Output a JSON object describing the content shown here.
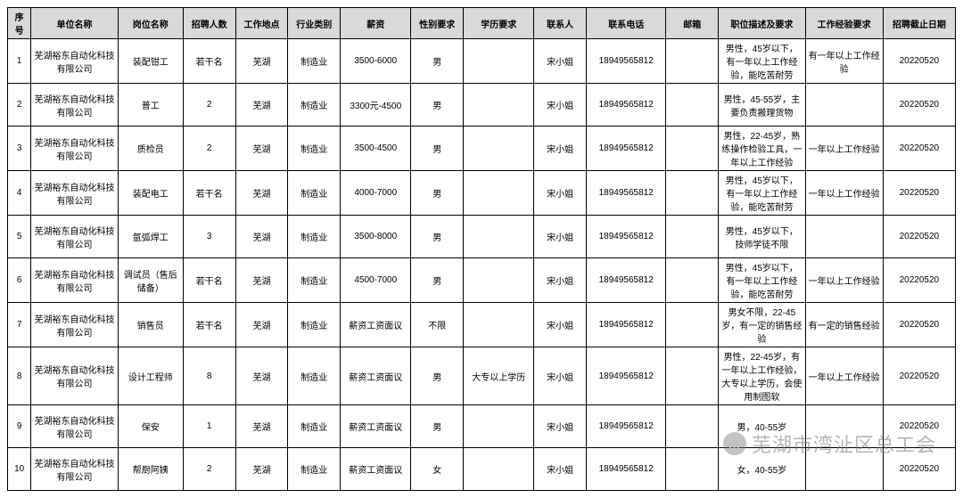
{
  "table": {
    "columns": [
      {
        "key": "idx",
        "label": "序号",
        "class": "col-idx"
      },
      {
        "key": "unit",
        "label": "单位名称",
        "class": "col-unit"
      },
      {
        "key": "position",
        "label": "岗位名称",
        "class": "col-pos"
      },
      {
        "key": "count",
        "label": "招聘人数",
        "class": "col-num"
      },
      {
        "key": "location",
        "label": "工作地点",
        "class": "col-loc"
      },
      {
        "key": "industry",
        "label": "行业类别",
        "class": "col-ind"
      },
      {
        "key": "salary",
        "label": "薪资",
        "class": "col-sal"
      },
      {
        "key": "gender",
        "label": "性别要求",
        "class": "col-gen"
      },
      {
        "key": "education",
        "label": "学历要求",
        "class": "col-edu"
      },
      {
        "key": "contact",
        "label": "联系人",
        "class": "col-contact"
      },
      {
        "key": "phone",
        "label": "联系电话",
        "class": "col-phone"
      },
      {
        "key": "email",
        "label": "邮箱",
        "class": "col-mail"
      },
      {
        "key": "jobdesc",
        "label": "职位描述及要求",
        "class": "col-desc"
      },
      {
        "key": "exp",
        "label": "工作经验要求",
        "class": "col-exp"
      },
      {
        "key": "deadline",
        "label": "招聘截止日期",
        "class": "col-dead"
      }
    ],
    "rows": [
      {
        "idx": "1",
        "unit": "芜湖裕东自动化科技有限公司",
        "position": "装配钳工",
        "count": "若干名",
        "location": "芜湖",
        "industry": "制造业",
        "salary": "3500-6000",
        "gender": "男",
        "education": "",
        "contact": "宋小姐",
        "phone": "18949565812",
        "email": "",
        "jobdesc": "男性，45岁以下，有一年以上工作经验，能吃苦耐劳",
        "exp": "有一年以上工作经验",
        "deadline": "20220520"
      },
      {
        "idx": "2",
        "unit": "芜湖裕东自动化科技有限公司",
        "position": "普工",
        "count": "2",
        "location": "芜湖",
        "industry": "制造业",
        "salary": "3300元-4500",
        "gender": "男",
        "education": "",
        "contact": "宋小姐",
        "phone": "18949565812",
        "email": "",
        "jobdesc": "男性，45-55岁，主要负责搬理货物",
        "exp": "",
        "deadline": "20220520"
      },
      {
        "idx": "3",
        "unit": "芜湖裕东自动化科技有限公司",
        "position": "质检员",
        "count": "2",
        "location": "芜湖",
        "industry": "制造业",
        "salary": "3500-4500",
        "gender": "男",
        "education": "",
        "contact": "宋小姐",
        "phone": "18949565812",
        "email": "",
        "jobdesc": "男性，22-45岁，熟练操作检验工具，一年以上工作经验",
        "exp": "一年以上工作经验",
        "deadline": "20220520"
      },
      {
        "idx": "4",
        "unit": "芜湖裕东自动化科技有限公司",
        "position": "装配电工",
        "count": "若干名",
        "location": "芜湖",
        "industry": "制造业",
        "salary": "4000-7000",
        "gender": "男",
        "education": "",
        "contact": "宋小姐",
        "phone": "18949565812",
        "email": "",
        "jobdesc": "男性，45岁以下，有一年以上工作经验，能吃苦耐劳",
        "exp": "一年以上工作经验",
        "deadline": "20220520"
      },
      {
        "idx": "5",
        "unit": "芜湖裕东自动化科技有限公司",
        "position": "氩弧焊工",
        "count": "3",
        "location": "芜湖",
        "industry": "制造业",
        "salary": "3500-8000",
        "gender": "男",
        "education": "",
        "contact": "宋小姐",
        "phone": "18949565812",
        "email": "",
        "jobdesc": "男性，45岁以下，技师学徒不限",
        "exp": "",
        "deadline": "20220520"
      },
      {
        "idx": "6",
        "unit": "芜湖裕东自动化科技有限公司",
        "position": "调试员（售后储备）",
        "count": "若干名",
        "location": "芜湖",
        "industry": "制造业",
        "salary": "4500-7000",
        "gender": "男",
        "education": "",
        "contact": "宋小姐",
        "phone": "18949565812",
        "email": "",
        "jobdesc": "男性，45岁以下，有一年以上工作经验，能吃苦耐劳",
        "exp": "一年以上工作经验",
        "deadline": "20220520"
      },
      {
        "idx": "7",
        "unit": "芜湖裕东自动化科技有限公司",
        "position": "销售员",
        "count": "若干名",
        "location": "芜湖",
        "industry": "制造业",
        "salary": "薪资工资面议",
        "gender": "不限",
        "education": "",
        "contact": "宋小姐",
        "phone": "18949565812",
        "email": "",
        "jobdesc": "男女不限，22-45岁，有一定的销售经验",
        "exp": "有一定的销售经验",
        "deadline": "20220520"
      },
      {
        "idx": "8",
        "unit": "芜湖裕东自动化科技有限公司",
        "position": "设计工程师",
        "count": "8",
        "location": "芜湖",
        "industry": "制造业",
        "salary": "薪资工资面议",
        "gender": "男",
        "education": "大专以上学历",
        "contact": "宋小姐",
        "phone": "18949565812",
        "email": "",
        "jobdesc": "男性，22-45岁，有一年以上工作经验，大专以上学历，会使用制图软",
        "exp": "一年以上工作经验",
        "deadline": "20220520"
      },
      {
        "idx": "9",
        "unit": "芜湖裕东自动化科技有限公司",
        "position": "保安",
        "count": "1",
        "location": "芜湖",
        "industry": "制造业",
        "salary": "薪资工资面议",
        "gender": "男",
        "education": "",
        "contact": "宋小姐",
        "phone": "18949565812",
        "email": "",
        "jobdesc": "男，40-55岁",
        "exp": "",
        "deadline": "20220520"
      },
      {
        "idx": "10",
        "unit": "芜湖裕东自动化科技有限公司",
        "position": "帮厨阿姨",
        "count": "2",
        "location": "芜湖",
        "industry": "制造业",
        "salary": "薪资工资面议",
        "gender": "女",
        "education": "",
        "contact": "宋小姐",
        "phone": "18949565812",
        "email": "",
        "jobdesc": "女，40-55岁",
        "exp": "",
        "deadline": "20220520"
      }
    ],
    "header_bg": "#d9d9d9",
    "border_color": "#000000",
    "font_size": 10
  },
  "watermark": {
    "text": "芜湖市湾沚区总工会",
    "icon_glyph": "…"
  }
}
